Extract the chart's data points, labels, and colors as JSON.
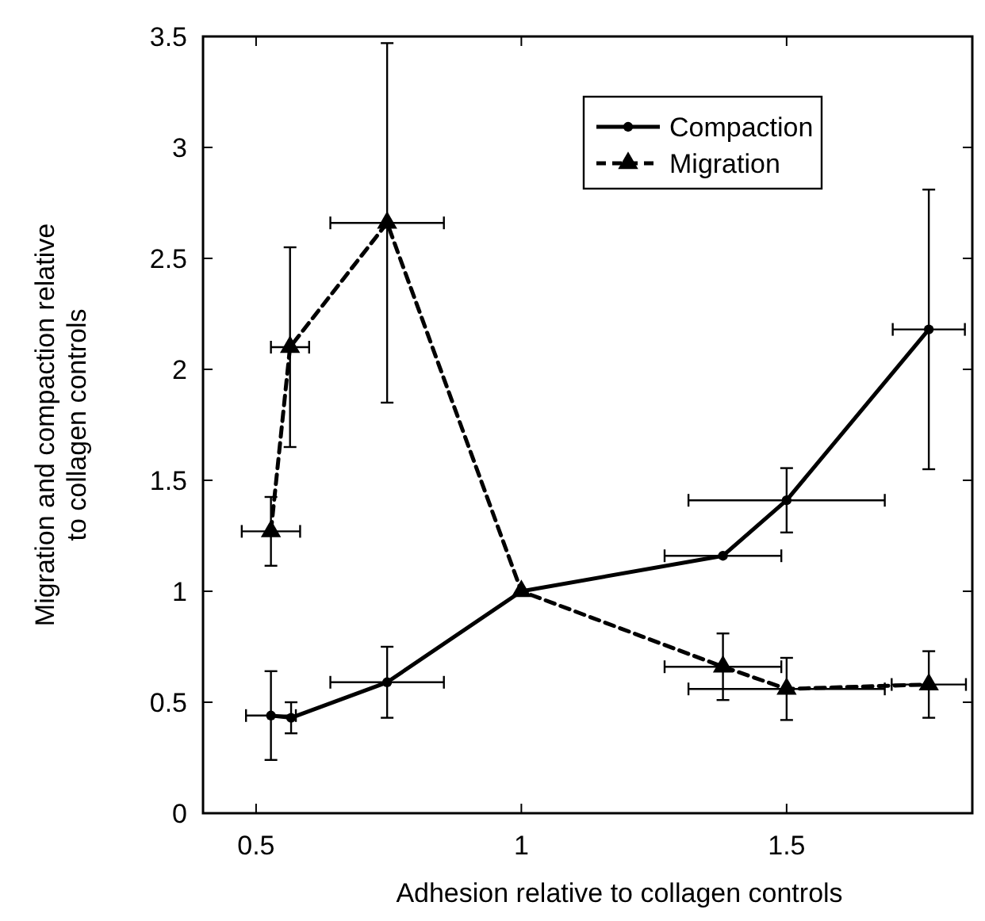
{
  "chart_data": {
    "type": "line",
    "xlabel": "Adhesion relative to collagen controls",
    "ylabel": "Migration and compaction relative\nto collagen controls",
    "xlim": [
      0.4,
      1.85
    ],
    "xticks": [
      0.5,
      1,
      1.5
    ],
    "ylim": [
      0,
      3.5
    ],
    "yticks": [
      0,
      0.5,
      1,
      1.5,
      2,
      2.5,
      3,
      3.5
    ],
    "legend": "top right",
    "grid": false,
    "series": [
      {
        "name": "Compaction",
        "color": "#000000",
        "marker": "circle",
        "line_style": "solid",
        "x": [
          0.528,
          0.566,
          0.747,
          1,
          1.38,
          1.5,
          1.768
        ],
        "values": [
          0.44,
          0.43,
          0.59,
          1,
          1.16,
          1.41,
          2.18
        ],
        "errors": [
          0.2,
          0.07,
          0.16,
          null,
          null,
          0.145,
          0.63
        ],
        "xerrors": [
          0.047,
          null,
          0.107,
          null,
          0.11,
          0.185,
          0.068
        ]
      },
      {
        "name": "Migration",
        "color": "#000000",
        "marker": "triangle",
        "line_style": "dashed",
        "x": [
          0.528,
          0.564,
          0.747,
          1,
          1.38,
          1.5,
          1.768
        ],
        "values": [
          1.27,
          2.1,
          2.66,
          1,
          0.66,
          0.56,
          0.58
        ],
        "errors": [
          0.155,
          0.45,
          0.81,
          null,
          0.15,
          0.14,
          0.15
        ],
        "xerrors": [
          0.055,
          0.036,
          0.107,
          null,
          0.11,
          0.185,
          0.07
        ]
      }
    ]
  }
}
